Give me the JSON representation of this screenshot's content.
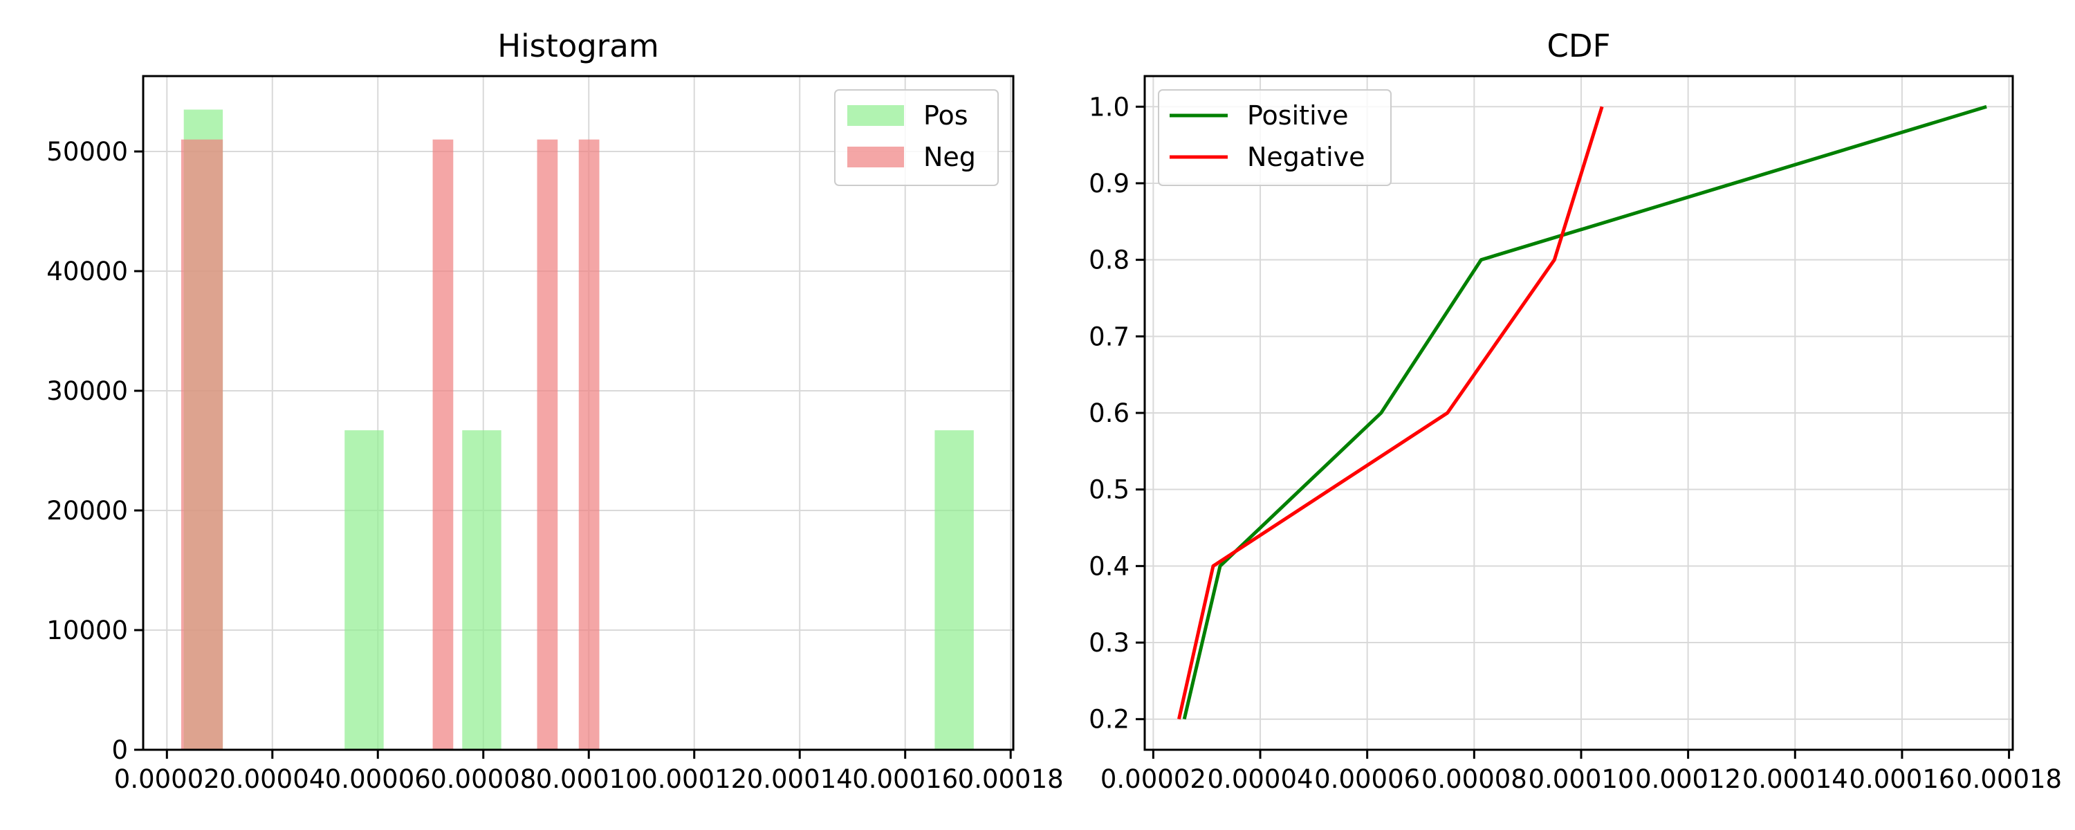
{
  "chart_data": [
    {
      "type": "bar",
      "title": "Histogram",
      "xlim": [
        1.55e-05,
        0.0001805
      ],
      "ylim": [
        0,
        56300
      ],
      "xticks": [
        "0.00002",
        "0.00004",
        "0.00006",
        "0.00008",
        "0.00010",
        "0.00012",
        "0.00014",
        "0.00016",
        "0.00018"
      ],
      "xtick_values": [
        2e-05,
        4e-05,
        6e-05,
        8e-05,
        0.0001,
        0.00012,
        0.00014,
        0.00016,
        0.00018
      ],
      "yticks": [
        "0",
        "10000",
        "20000",
        "30000",
        "40000",
        "50000"
      ],
      "ytick_values": [
        0,
        10000,
        20000,
        30000,
        40000,
        50000
      ],
      "grid": true,
      "legend_position": "top-right",
      "series": [
        {
          "name": "Pos",
          "color": "#90ee90",
          "opacity": 0.7,
          "bars": [
            {
              "x0": 2.32e-05,
              "x1": 3.06e-05,
              "value": 53500
            },
            {
              "x0": 5.37e-05,
              "x1": 6.11e-05,
              "value": 26700
            },
            {
              "x0": 7.6e-05,
              "x1": 8.34e-05,
              "value": 26700
            },
            {
              "x0": 0.0001656,
              "x1": 0.000173,
              "value": 26700
            }
          ]
        },
        {
          "name": "Neg",
          "color": "#f08080",
          "opacity": 0.7,
          "bars": [
            {
              "x0": 2.27e-05,
              "x1": 3.06e-05,
              "value": 51000
            },
            {
              "x0": 7.04e-05,
              "x1": 7.43e-05,
              "value": 51000
            },
            {
              "x0": 9.02e-05,
              "x1": 9.41e-05,
              "value": 51000
            },
            {
              "x0": 9.81e-05,
              "x1": 0.000102,
              "value": 51000
            }
          ]
        }
      ]
    },
    {
      "type": "line",
      "title": "CDF",
      "xlim": [
        1.84e-05,
        0.0001807
      ],
      "ylim": [
        0.16,
        1.04
      ],
      "xticks": [
        "0.00002",
        "0.00004",
        "0.00006",
        "0.00008",
        "0.00010",
        "0.00012",
        "0.00014",
        "0.00016",
        "0.00018"
      ],
      "xtick_values": [
        2e-05,
        4e-05,
        6e-05,
        8e-05,
        0.0001,
        0.00012,
        0.00014,
        0.00016,
        0.00018
      ],
      "yticks": [
        "0.2",
        "0.3",
        "0.4",
        "0.5",
        "0.6",
        "0.7",
        "0.8",
        "0.9",
        "1.0"
      ],
      "ytick_values": [
        0.2,
        0.3,
        0.4,
        0.5,
        0.6,
        0.7,
        0.8,
        0.9,
        1.0
      ],
      "grid": true,
      "legend_position": "top-left",
      "series": [
        {
          "name": "Positive",
          "color": "#008000",
          "x": [
            2.58e-05,
            3.25e-05,
            6.26e-05,
            8.13e-05,
            0.0001758
          ],
          "y": [
            0.2,
            0.4,
            0.6,
            0.8,
            1.0
          ]
        },
        {
          "name": "Negative",
          "color": "#ff0000",
          "x": [
            2.48e-05,
            3.12e-05,
            7.5e-05,
            9.5e-05,
            0.0001039
          ],
          "y": [
            0.2,
            0.4,
            0.6,
            0.8,
            1.0
          ]
        }
      ]
    }
  ]
}
